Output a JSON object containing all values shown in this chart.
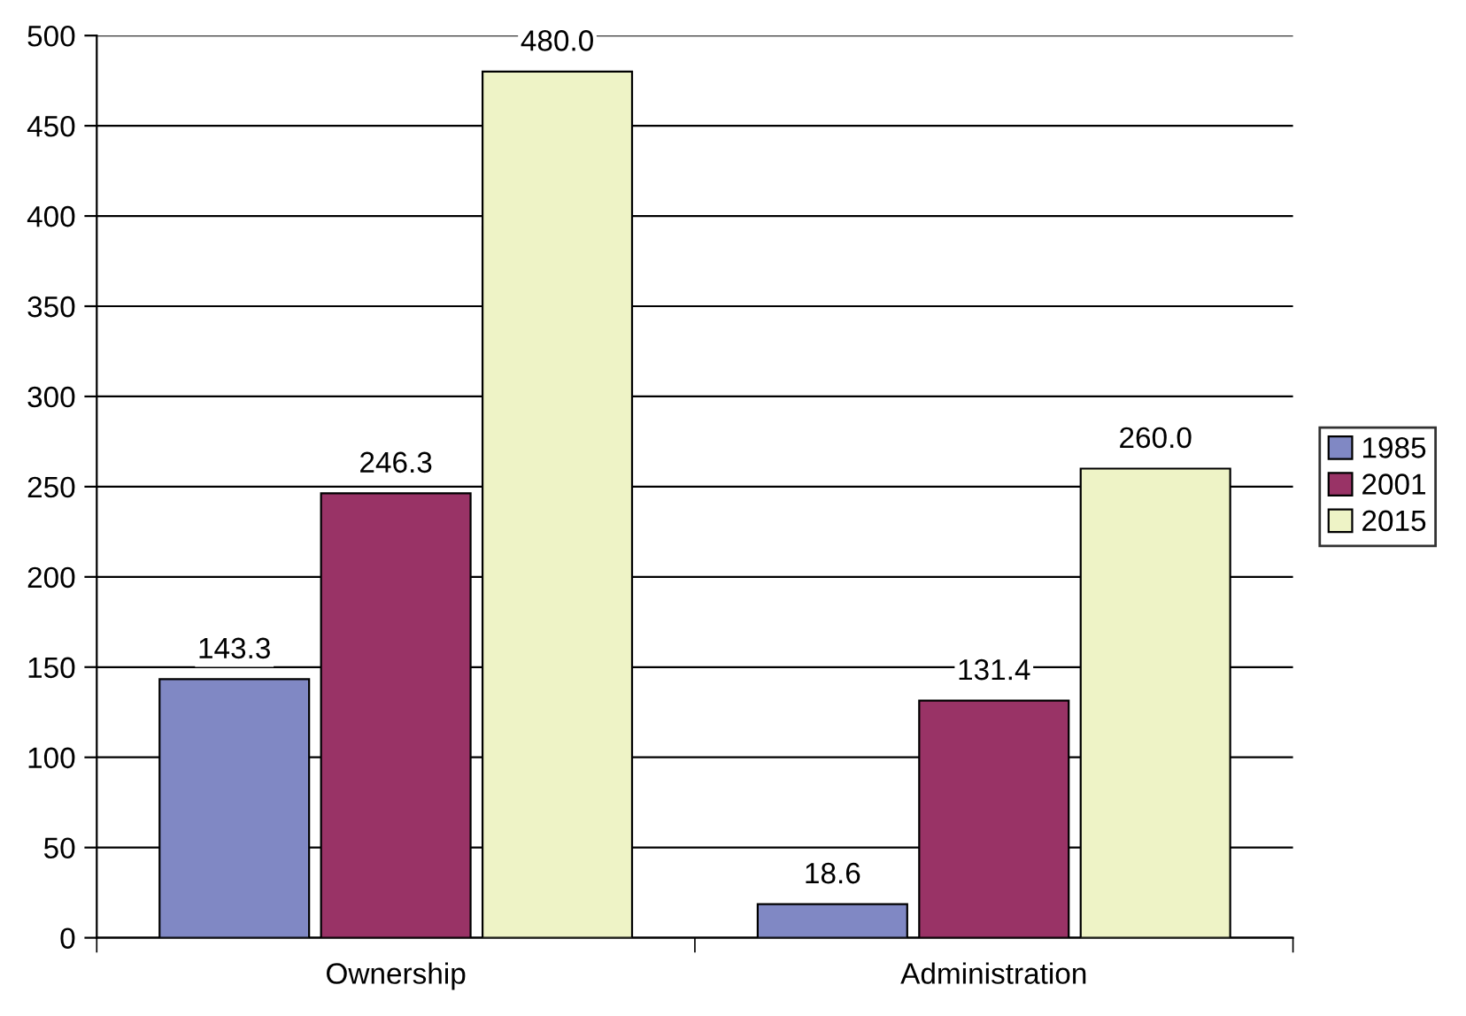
{
  "chart_data": {
    "type": "bar",
    "categories": [
      "Ownership",
      "Administration"
    ],
    "series": [
      {
        "name": "1985",
        "color": "#8088c4",
        "values": [
          143.3,
          18.6
        ],
        "value_labels": [
          "143.3",
          "18.6"
        ]
      },
      {
        "name": "2001",
        "color": "#993366",
        "values": [
          246.3,
          131.4
        ],
        "value_labels": [
          "246.3",
          "131.4"
        ]
      },
      {
        "name": "2015",
        "color": "#eef3c6",
        "values": [
          480.0,
          260.0
        ],
        "value_labels": [
          "480.0",
          "260.0"
        ]
      }
    ],
    "ylim": [
      0,
      500
    ],
    "yticks": [
      0,
      50,
      100,
      150,
      200,
      250,
      300,
      350,
      400,
      450,
      500
    ],
    "grid": "y",
    "legend": "right"
  }
}
